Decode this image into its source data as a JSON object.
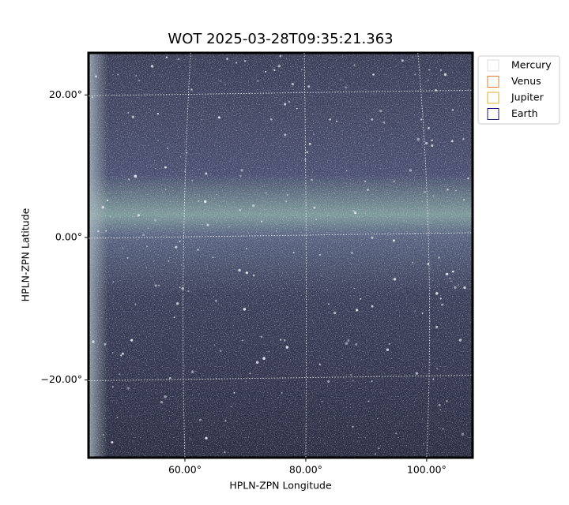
{
  "chart_data": {
    "type": "image",
    "title": "WOT 2025-03-28T09:35:21.363",
    "x_label": "HPLN-ZPN Longitude",
    "y_label": "HPLN-ZPN Latitude",
    "xlim": [
      44.05,
      107.6
    ],
    "ylim": [
      -30.9,
      25.9
    ],
    "xticks": [
      {
        "value": 60,
        "label": "60.00°"
      },
      {
        "value": 80,
        "label": "80.00°"
      },
      {
        "value": 100,
        "label": "100.00°"
      }
    ],
    "yticks": [
      {
        "value": 20,
        "label": "20.00°"
      },
      {
        "value": 0,
        "label": "0.00°"
      },
      {
        "value": -20,
        "label": "−20.00°"
      }
    ],
    "grid": true,
    "legend_position": "upper right",
    "legend": [
      {
        "name": "Mercury",
        "color": "#dddddd"
      },
      {
        "name": "Venus",
        "color": "#e07b39"
      },
      {
        "name": "Jupiter",
        "color": "#e0b020"
      },
      {
        "name": "Earth",
        "color": "#1a1a6e"
      }
    ]
  }
}
